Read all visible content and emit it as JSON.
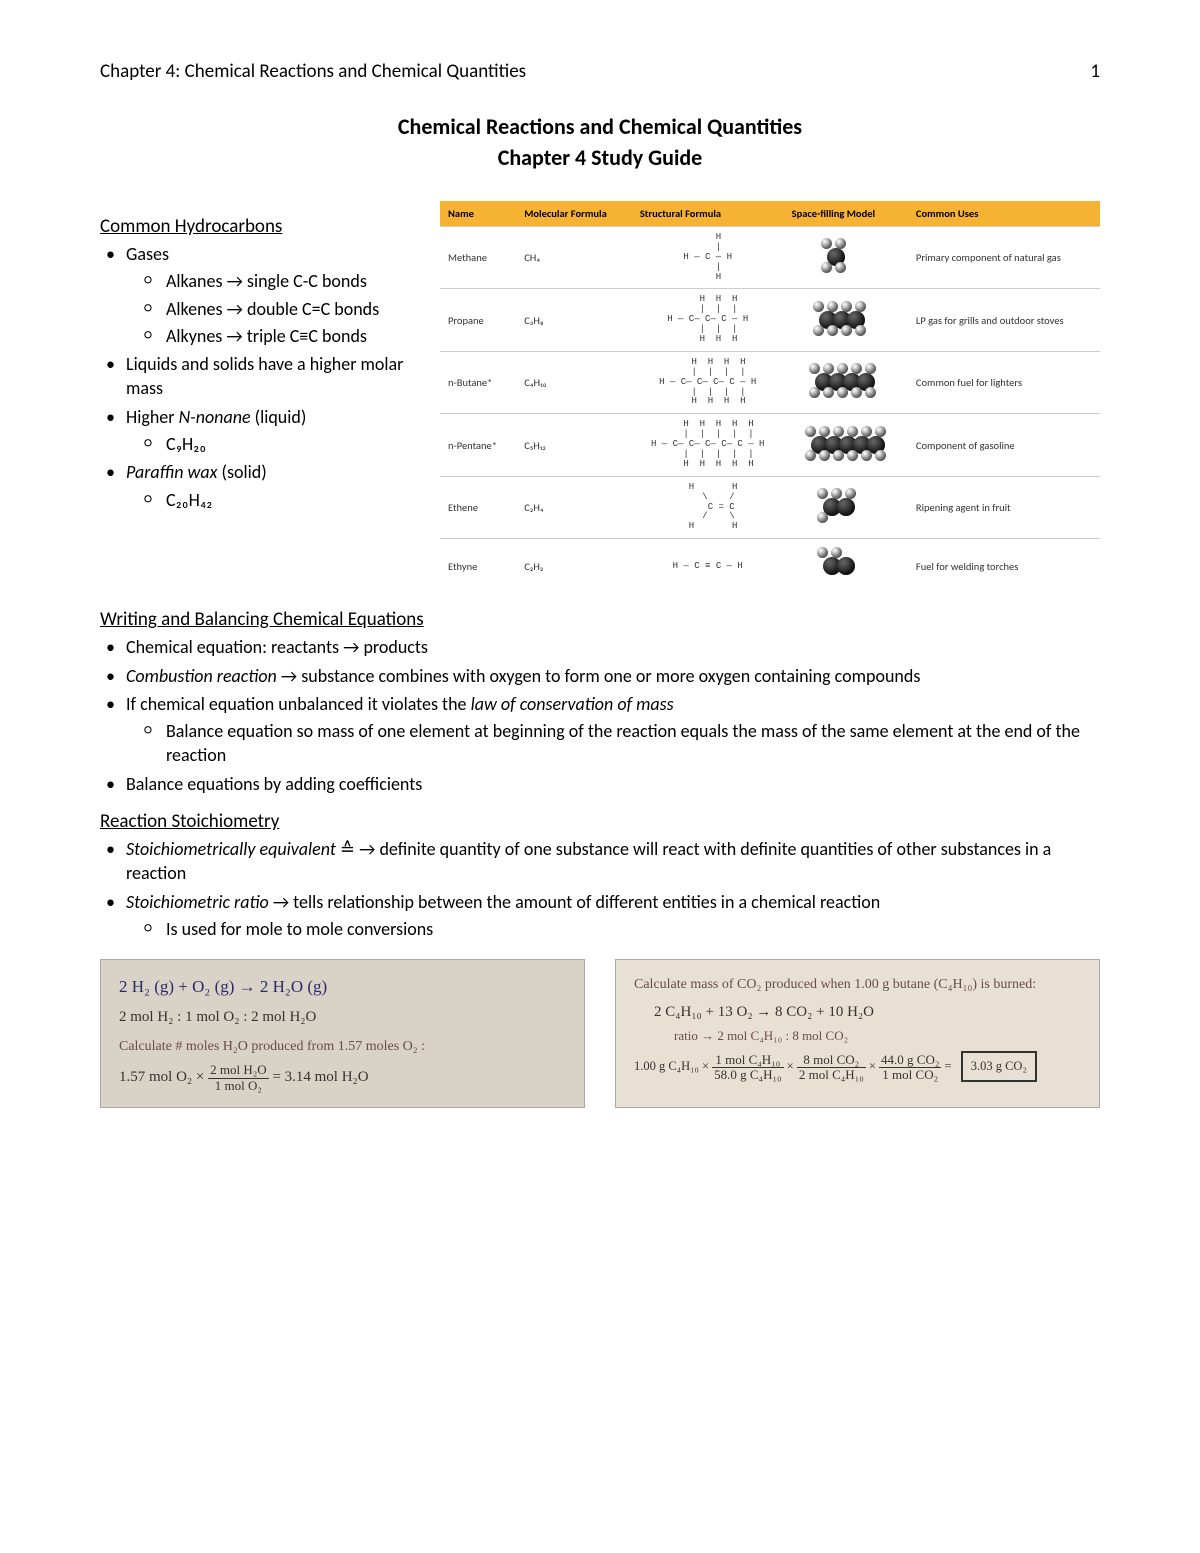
{
  "header": {
    "chapter_label": "Chapter 4: Chemical Reactions and Chemical Quantities",
    "page_number": "1"
  },
  "title": {
    "main": "Chemical Reactions and Chemical Quantities",
    "sub": "Chapter 4 Study Guide"
  },
  "hydrocarbons": {
    "heading": "Common Hydrocarbons",
    "bullets": {
      "gases": "Gases",
      "alkanes": "Alkanes → single C-C bonds",
      "alkenes": "Alkenes → double C=C bonds",
      "alkynes": "Alkynes → triple C≡C bonds",
      "liquids_solids": "Liquids and solids have a higher molar mass",
      "nonane_label": "Higher ",
      "nonane_em": "N-nonane",
      "nonane_tail": " (liquid)",
      "nonane_formula": "C₉H₂₀",
      "paraffin_em": "Paraffin wax",
      "paraffin_tail": " (solid)",
      "paraffin_formula": "C₂₀H₄₂"
    }
  },
  "table": {
    "header_bg": "#f6b333",
    "headers": [
      "Name",
      "Molecular Formula",
      "Structural Formula",
      "Space-filling Model",
      "Common Uses"
    ],
    "rows": [
      {
        "name": "Methane",
        "formula": "CH₄",
        "struct": "    H\n    |\nH — C — H\n    |\n    H",
        "use": "Primary component of natural gas",
        "dark": 1,
        "light": 4
      },
      {
        "name": "Propane",
        "formula": "C₃H₈",
        "struct": "    H  H  H\n    |  |  |\nH — C— C— C — H\n    |  |  |\n    H  H  H",
        "use": "LP gas for grills and outdoor stoves",
        "dark": 3,
        "light": 8
      },
      {
        "name": "n-Butane*",
        "formula": "C₄H₁₀",
        "struct": "    H  H  H  H\n    |  |  |  |\nH — C— C— C— C — H\n    |  |  |  |\n    H  H  H  H",
        "use": "Common fuel for lighters",
        "dark": 4,
        "light": 10
      },
      {
        "name": "n-Pentane*",
        "formula": "C₅H₁₂",
        "struct": "    H  H  H  H  H\n    |  |  |  |  |\nH — C— C— C— C— C — H\n    |  |  |  |  |\n    H  H  H  H  H",
        "use": "Component of gasoline",
        "dark": 5,
        "light": 12
      },
      {
        "name": "Ethene",
        "formula": "C₂H₄",
        "struct": "  H       H\n    \\    /\n     C = C\n    /    \\\n  H       H",
        "use": "Ripening agent in fruit",
        "dark": 2,
        "light": 4
      },
      {
        "name": "Ethyne",
        "formula": "C₂H₂",
        "struct": "H — C ≡ C — H",
        "use": "Fuel for welding torches",
        "dark": 2,
        "light": 2
      }
    ]
  },
  "balancing": {
    "heading": "Writing and Balancing Chemical Equations",
    "b1": "Chemical equation: reactants → products",
    "b2_em": "Combustion reaction",
    "b2_tail": " → substance combines with oxygen to form one or more oxygen containing compounds",
    "b3_pre": "If chemical equation unbalanced it violates the ",
    "b3_em": "law of conservation of mass",
    "b3_sub": "Balance equation so mass of one element at beginning of the reaction equals the mass of the same element at the end of the reaction",
    "b4": "Balance equations by adding coefficients"
  },
  "stoich": {
    "heading": "Reaction Stoichiometry",
    "b1_em": "Stoichiometrically equivalent",
    "b1_tail": " ≙ → definite quantity of one substance will react with definite quantities of other substances in a reaction",
    "b2_em": "Stoichiometric ratio",
    "b2_tail": " → tells relationship between the amount of different entities in a chemical reaction",
    "b2_sub": "Is used for mole to mole conversions"
  },
  "handwritten": {
    "left": {
      "bg": "#d9d2c7",
      "eq": "2 H₂ (g) + O₂ (g) → 2 H₂O (g)",
      "ratio": "2 mol H₂ : 1 mol O₂ : 2 mol H₂O",
      "prompt": "Calculate # moles H₂O produced from 1.57 moles O₂ :",
      "calc_lhs": "1.57 mol O₂ × ",
      "frac_n": "2 mol H₂O",
      "frac_d": "1 mol O₂",
      "result": " = 3.14 mol H₂O"
    },
    "right": {
      "bg": "#e8e1d3",
      "prompt": "Calculate mass of CO₂ produced when 1.00 g butane (C₄H₁₀) is burned:",
      "eq": "2 C₄H₁₀ + 13 O₂ → 8 CO₂ + 10 H₂O",
      "ratio": "ratio → 2 mol C₄H₁₀ : 8 mol CO₂",
      "calc_pre": "1.00 g C₄H₁₀ × ",
      "f1n": "1 mol C₄H₁₀",
      "f1d": "58.0 g C₄H₁₀",
      "f2n": "8 mol CO₂",
      "f2d": "2 mol C₄H₁₀",
      "f3n": "44.0 g CO₂",
      "f3d": "1 mol CO₂",
      "result": "3.03 g CO₂"
    }
  }
}
